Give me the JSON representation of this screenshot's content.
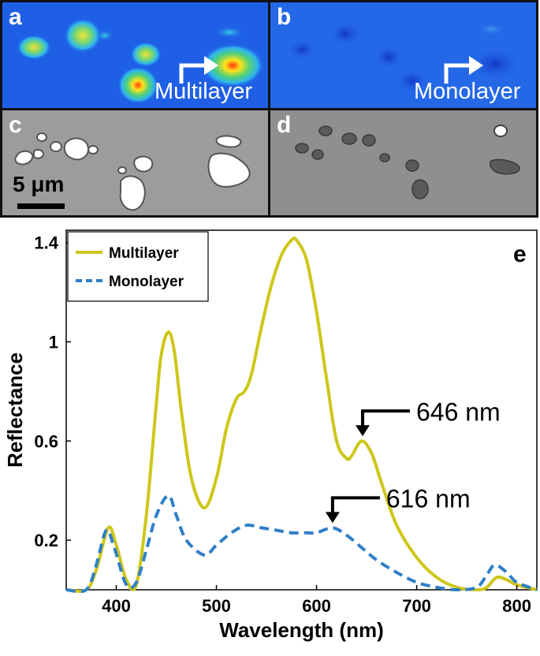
{
  "panels": {
    "a": {
      "letter": "a",
      "label": "Multilayer"
    },
    "b": {
      "letter": "b",
      "label": "Monolayer"
    },
    "c": {
      "letter": "c",
      "scale": "5 μm"
    },
    "d": {
      "letter": "d"
    }
  },
  "colors": {
    "multilayer": "#cdc71a",
    "monolayer": "#2f7fc8",
    "heatmap_bg": "#1e5fe6"
  },
  "chart_data": {
    "type": "line",
    "panel_letter": "e",
    "xlabel": "Wavelength (nm)",
    "ylabel": "Reflectance",
    "xlim": [
      350,
      820
    ],
    "ylim": [
      0,
      1.45
    ],
    "xticks": [
      400,
      500,
      600,
      700,
      800
    ],
    "yticks": [
      0.2,
      0.6,
      1,
      1.4
    ],
    "ytick_labels": [
      "0.2",
      "0.6",
      "1",
      "1.4"
    ],
    "legend_position": "top-left",
    "series": [
      {
        "name": "Multilayer",
        "style": "solid",
        "x": [
          350,
          370,
          380,
          392,
          400,
          410,
          420,
          430,
          440,
          445,
          452,
          458,
          465,
          475,
          488,
          500,
          510,
          520,
          528,
          535,
          545,
          555,
          565,
          575,
          580,
          590,
          600,
          610,
          620,
          630,
          635,
          645,
          655,
          665,
          680,
          700,
          720,
          740,
          760,
          770,
          780,
          790,
          800,
          820
        ],
        "y": [
          0.0,
          0.0,
          0.08,
          0.25,
          0.18,
          0.04,
          0.02,
          0.3,
          0.75,
          0.95,
          1.04,
          0.96,
          0.72,
          0.45,
          0.33,
          0.45,
          0.65,
          0.77,
          0.8,
          0.87,
          1.06,
          1.23,
          1.35,
          1.41,
          1.41,
          1.33,
          1.12,
          0.85,
          0.6,
          0.53,
          0.54,
          0.6,
          0.55,
          0.43,
          0.26,
          0.13,
          0.05,
          0.01,
          0.0,
          0.01,
          0.05,
          0.04,
          0.02,
          0.0
        ]
      },
      {
        "name": "Monolayer",
        "style": "dashed",
        "x": [
          350,
          370,
          380,
          390,
          398,
          410,
          420,
          430,
          440,
          452,
          460,
          470,
          488,
          500,
          515,
          530,
          545,
          560,
          575,
          590,
          600,
          616,
          630,
          645,
          660,
          680,
          700,
          720,
          740,
          760,
          770,
          778,
          790,
          800,
          820
        ],
        "y": [
          0.0,
          0.0,
          0.1,
          0.24,
          0.17,
          0.02,
          0.03,
          0.16,
          0.3,
          0.38,
          0.3,
          0.2,
          0.14,
          0.18,
          0.23,
          0.26,
          0.25,
          0.24,
          0.23,
          0.23,
          0.23,
          0.25,
          0.22,
          0.17,
          0.12,
          0.07,
          0.03,
          0.01,
          0.0,
          0.01,
          0.06,
          0.1,
          0.07,
          0.03,
          0.0
        ]
      }
    ],
    "annotations": [
      {
        "text": "646 nm",
        "x": 646,
        "y": 0.6
      },
      {
        "text": "616 nm",
        "x": 616,
        "y": 0.25
      }
    ]
  }
}
